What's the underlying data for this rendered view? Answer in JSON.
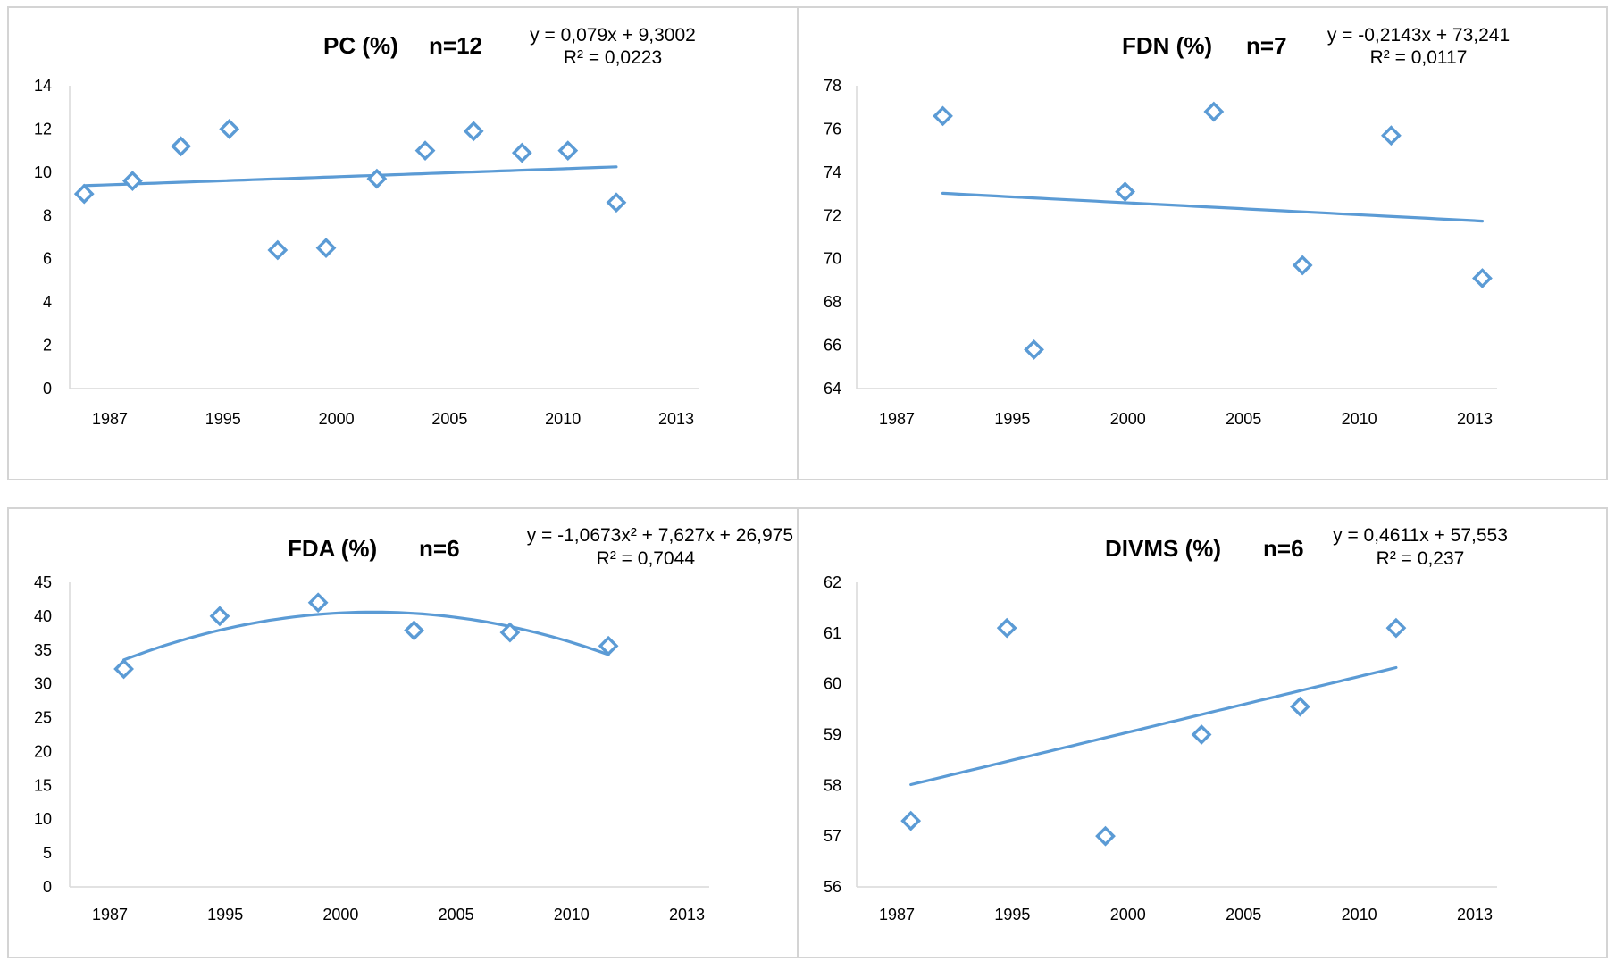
{
  "colors": {
    "series": "#5b9bd5",
    "border": "#d4d4d4",
    "axis": "#d9d9d9"
  },
  "chart_data": [
    {
      "type": "scatter",
      "title": "PC (%)",
      "n_label": "n=12",
      "equation": "y = 0,079x + 9,3002",
      "r2": "R² = 0,0223",
      "trendline": {
        "kind": "linear",
        "a": 0.079,
        "b": 9.3002
      },
      "xlim": [
        1987,
        2013
      ],
      "ylim": [
        0,
        14
      ],
      "x_ticks": [
        "1987",
        "1995",
        "2000",
        "2005",
        "2010",
        "2013"
      ],
      "y_ticks": [
        "0",
        "2",
        "4",
        "6",
        "8",
        "10",
        "12",
        "14"
      ],
      "x": [
        1987.6,
        1989.6,
        1991.6,
        1993.6,
        1995.6,
        1997.6,
        1999.7,
        2001.7,
        2003.7,
        2005.7,
        2007.6,
        2009.6
      ],
      "values": [
        9.0,
        9.6,
        11.2,
        12.0,
        6.4,
        6.5,
        9.7,
        11.0,
        11.9,
        10.9,
        11.0,
        8.6
      ],
      "trend_x": [
        1987.6,
        2009.6
      ],
      "legend": "none",
      "grid": false
    },
    {
      "type": "scatter",
      "title": "FDN (%)",
      "n_label": "n=7",
      "equation": "y = -0,2143x + 73,241",
      "r2": "R² = 0,0117",
      "trendline": {
        "kind": "linear",
        "a": -0.2143,
        "b": 73.241
      },
      "xlim": [
        1987,
        2013
      ],
      "ylim": [
        64,
        78
      ],
      "x_ticks": [
        "1987",
        "1995",
        "2000",
        "2005",
        "2010",
        "2013"
      ],
      "y_ticks": [
        "64",
        "66",
        "68",
        "70",
        "72",
        "74",
        "76",
        "78"
      ],
      "x": [
        1990.5,
        1994.2,
        1997.9,
        2001.5,
        2005.1,
        2008.7,
        2012.4
      ],
      "values": [
        76.6,
        65.8,
        73.1,
        76.8,
        69.7,
        75.7,
        69.1
      ],
      "trend_x": [
        1990.5,
        2012.4
      ],
      "legend": "none",
      "grid": false
    },
    {
      "type": "scatter",
      "title": "FDA (%)",
      "n_label": "n=6",
      "equation": "y = -1,0673x² + 7,627x + 26,975",
      "r2": "R² = 0,7044",
      "trendline": {
        "kind": "poly2",
        "a": -1.0673,
        "b": 7.627,
        "c": 26.975
      },
      "xlim": [
        1987,
        2013
      ],
      "ylim": [
        0,
        45
      ],
      "x_ticks": [
        "1987",
        "1995",
        "2000",
        "2005",
        "2010",
        "2013"
      ],
      "y_ticks": [
        "0",
        "5",
        "10",
        "15",
        "20",
        "25",
        "30",
        "35",
        "40",
        "45"
      ],
      "x": [
        1989.2,
        1993.1,
        1997.1,
        2001.0,
        2004.9,
        2008.9
      ],
      "values": [
        32.2,
        40.0,
        42.0,
        37.9,
        37.6,
        35.6
      ],
      "trend_x": [
        1989.2,
        2008.9
      ],
      "legend": "none",
      "grid": false
    },
    {
      "type": "scatter",
      "title": "DIVMS (%)",
      "n_label": "n=6",
      "equation": "y = 0,4611x + 57,553",
      "r2": "R² = 0,237",
      "trendline": {
        "kind": "linear",
        "a": 0.4611,
        "b": 57.553
      },
      "xlim": [
        1987,
        2013
      ],
      "ylim": [
        56,
        62
      ],
      "x_ticks": [
        "1987",
        "1995",
        "2000",
        "2005",
        "2010",
        "2013"
      ],
      "y_ticks": [
        "56",
        "57",
        "58",
        "59",
        "60",
        "61",
        "62"
      ],
      "x": [
        1989.2,
        1993.1,
        1997.1,
        2001.0,
        2005.0,
        2008.9
      ],
      "values": [
        57.3,
        61.1,
        57.0,
        59.0,
        59.55,
        61.1
      ],
      "trend_x": [
        1989.2,
        2008.9
      ],
      "legend": "none",
      "grid": false
    }
  ]
}
